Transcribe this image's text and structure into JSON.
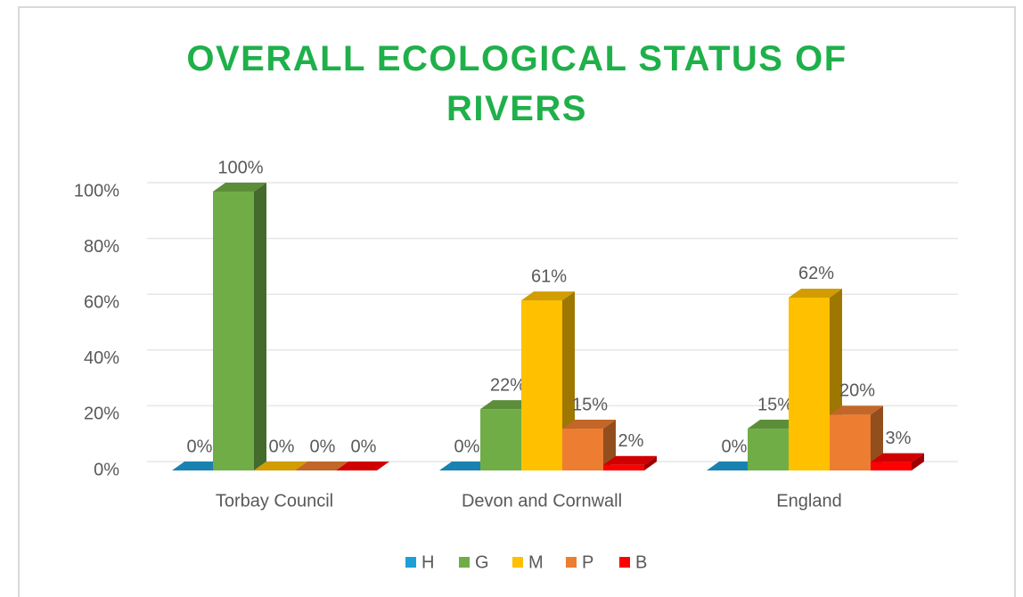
{
  "chart_data": {
    "type": "bar3d",
    "title": "OVERALL ECOLOGICAL STATUS OF RIVERS",
    "categories": [
      "Torbay Council",
      "Devon and Cornwall",
      "England"
    ],
    "series": [
      {
        "name": "H",
        "color": "#1e9fd8",
        "values": [
          0,
          0,
          0
        ],
        "value_labels": [
          "0%",
          "0%",
          "0%"
        ]
      },
      {
        "name": "G",
        "color": "#70ad47",
        "values": [
          100,
          22,
          15
        ],
        "value_labels": [
          "100%",
          "22%",
          "15%"
        ]
      },
      {
        "name": "M",
        "color": "#ffc000",
        "values": [
          0,
          61,
          62
        ],
        "value_labels": [
          "0%",
          "61%",
          "62%"
        ]
      },
      {
        "name": "P",
        "color": "#ed7d31",
        "values": [
          0,
          15,
          20
        ],
        "value_labels": [
          "0%",
          "15%",
          "20%"
        ]
      },
      {
        "name": "B",
        "color": "#ff0000",
        "values": [
          0,
          2,
          3
        ],
        "value_labels": [
          "0%",
          "2%",
          "3%"
        ]
      }
    ],
    "ylim": [
      0,
      100
    ],
    "yticks": [
      {
        "value": 0,
        "label": "0%"
      },
      {
        "value": 20,
        "label": "20%"
      },
      {
        "value": 40,
        "label": "40%"
      },
      {
        "value": 60,
        "label": "60%"
      },
      {
        "value": 80,
        "label": "80%"
      },
      {
        "value": 100,
        "label": "100%"
      }
    ],
    "grid": true,
    "legend": "bottom"
  }
}
